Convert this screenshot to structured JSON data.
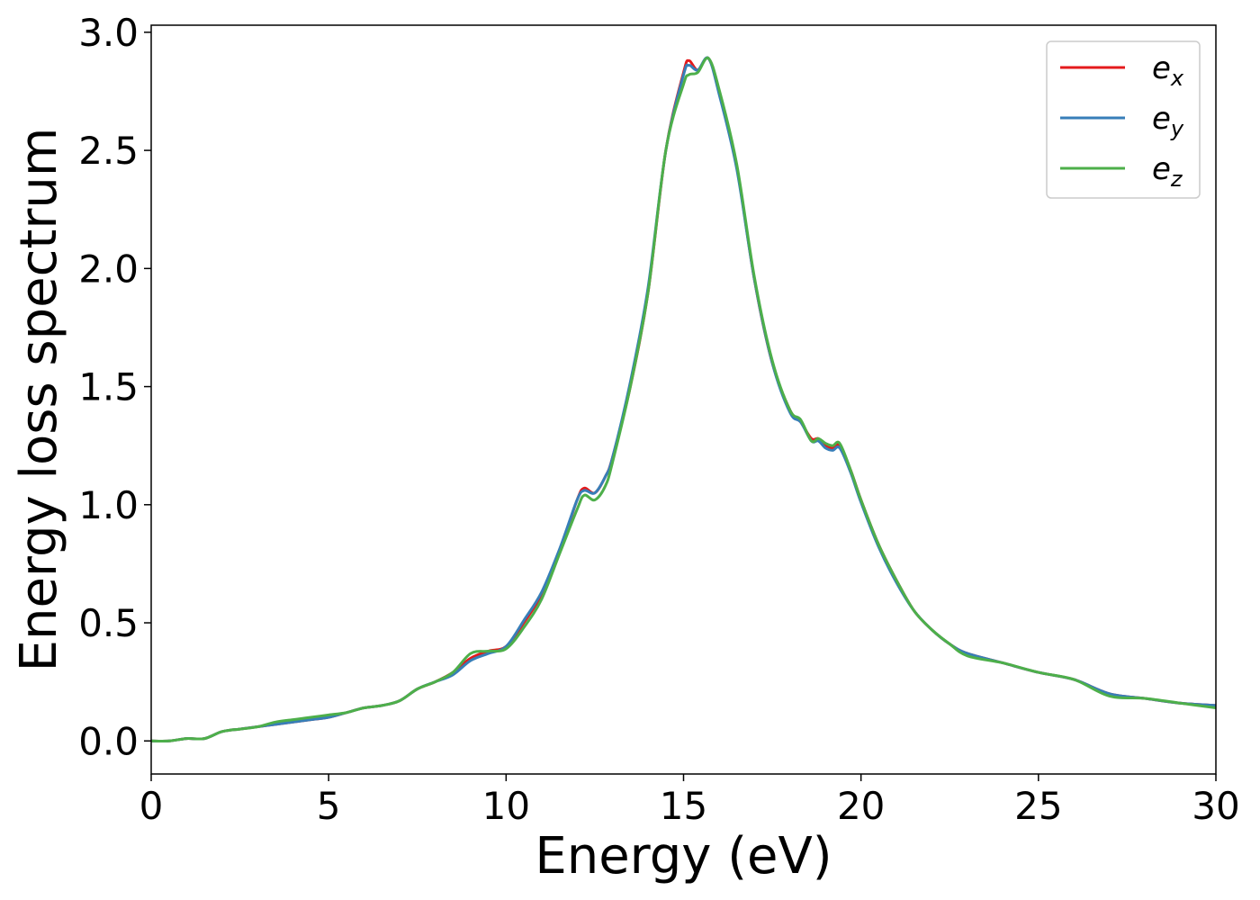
{
  "chart_data": {
    "type": "line",
    "xlabel": "Energy (eV)",
    "ylabel": "Energy loss spectrum",
    "xlim": [
      0,
      30
    ],
    "ylim": [
      -0.14,
      3.03
    ],
    "xticks": [
      0,
      5,
      10,
      15,
      20,
      25,
      30
    ],
    "xtick_labels": [
      "0",
      "5",
      "10",
      "15",
      "20",
      "25",
      "30"
    ],
    "yticks": [
      0.0,
      0.5,
      1.0,
      1.5,
      2.0,
      2.5,
      3.0
    ],
    "ytick_labels": [
      "0.0",
      "0.5",
      "1.0",
      "1.5",
      "2.0",
      "2.5",
      "3.0"
    ],
    "grid": false,
    "legend_position": "top-right",
    "series": [
      {
        "name": "e",
        "subscript": "x",
        "color": "#e41a1c",
        "x": [
          0,
          0.5,
          1.0,
          1.5,
          2.0,
          2.5,
          3.0,
          3.5,
          4.0,
          4.5,
          5.0,
          5.5,
          6.0,
          6.5,
          7.0,
          7.5,
          8.0,
          8.5,
          9.0,
          9.5,
          10.0,
          10.5,
          11.0,
          11.5,
          12.0,
          12.2,
          12.5,
          12.8,
          13.0,
          13.5,
          14.0,
          14.5,
          15.0,
          15.15,
          15.4,
          15.7,
          16.0,
          16.5,
          17.0,
          17.5,
          18.0,
          18.3,
          18.6,
          18.8,
          19.0,
          19.2,
          19.4,
          19.7,
          20.0,
          20.5,
          21.0,
          21.5,
          22.0,
          22.5,
          23.0,
          24.0,
          25.0,
          26.0,
          27.0,
          28.0,
          29.0,
          30.0
        ],
        "y": [
          0.0,
          0.0,
          0.01,
          0.01,
          0.04,
          0.05,
          0.06,
          0.07,
          0.08,
          0.09,
          0.1,
          0.12,
          0.14,
          0.15,
          0.17,
          0.22,
          0.25,
          0.29,
          0.35,
          0.38,
          0.4,
          0.5,
          0.62,
          0.8,
          1.02,
          1.07,
          1.05,
          1.12,
          1.2,
          1.5,
          1.9,
          2.5,
          2.83,
          2.88,
          2.84,
          2.89,
          2.75,
          2.43,
          1.95,
          1.6,
          1.4,
          1.35,
          1.28,
          1.28,
          1.25,
          1.24,
          1.25,
          1.15,
          1.02,
          0.83,
          0.68,
          0.55,
          0.47,
          0.41,
          0.37,
          0.33,
          0.29,
          0.26,
          0.2,
          0.18,
          0.16,
          0.15
        ]
      },
      {
        "name": "e",
        "subscript": "y",
        "color": "#377eb8",
        "x": [
          0,
          0.5,
          1.0,
          1.5,
          2.0,
          2.5,
          3.0,
          3.5,
          4.0,
          4.5,
          5.0,
          5.5,
          6.0,
          6.5,
          7.0,
          7.5,
          8.0,
          8.5,
          9.0,
          9.5,
          10.0,
          10.5,
          11.0,
          11.5,
          12.0,
          12.2,
          12.5,
          12.8,
          13.0,
          13.5,
          14.0,
          14.5,
          15.0,
          15.15,
          15.4,
          15.7,
          16.0,
          16.5,
          17.0,
          17.5,
          18.0,
          18.3,
          18.6,
          18.8,
          19.0,
          19.2,
          19.4,
          19.7,
          20.0,
          20.5,
          21.0,
          21.5,
          22.0,
          22.5,
          23.0,
          24.0,
          25.0,
          26.0,
          27.0,
          28.0,
          29.0,
          30.0
        ],
        "y": [
          0.0,
          0.0,
          0.01,
          0.01,
          0.04,
          0.05,
          0.06,
          0.07,
          0.08,
          0.09,
          0.1,
          0.12,
          0.14,
          0.15,
          0.17,
          0.22,
          0.25,
          0.28,
          0.34,
          0.37,
          0.4,
          0.51,
          0.63,
          0.81,
          1.02,
          1.06,
          1.05,
          1.12,
          1.2,
          1.52,
          1.92,
          2.5,
          2.82,
          2.86,
          2.84,
          2.89,
          2.74,
          2.42,
          1.95,
          1.6,
          1.39,
          1.35,
          1.27,
          1.27,
          1.24,
          1.23,
          1.24,
          1.14,
          1.01,
          0.82,
          0.67,
          0.55,
          0.47,
          0.41,
          0.37,
          0.33,
          0.29,
          0.26,
          0.2,
          0.18,
          0.16,
          0.15
        ]
      },
      {
        "name": "e",
        "subscript": "z",
        "color": "#4daf4a",
        "x": [
          0,
          0.5,
          1.0,
          1.5,
          2.0,
          2.5,
          3.0,
          3.5,
          4.0,
          4.5,
          5.0,
          5.5,
          6.0,
          6.5,
          7.0,
          7.5,
          8.0,
          8.5,
          9.0,
          9.5,
          10.0,
          10.5,
          11.0,
          11.5,
          12.0,
          12.2,
          12.5,
          12.8,
          13.0,
          13.5,
          14.0,
          14.5,
          15.0,
          15.15,
          15.4,
          15.7,
          16.0,
          16.5,
          17.0,
          17.5,
          18.0,
          18.3,
          18.6,
          18.8,
          19.0,
          19.2,
          19.4,
          19.7,
          20.0,
          20.5,
          21.0,
          21.5,
          22.0,
          22.5,
          23.0,
          24.0,
          25.0,
          26.0,
          27.0,
          28.0,
          29.0,
          30.0
        ],
        "y": [
          0.0,
          0.0,
          0.01,
          0.01,
          0.04,
          0.05,
          0.06,
          0.08,
          0.09,
          0.1,
          0.11,
          0.12,
          0.14,
          0.15,
          0.17,
          0.22,
          0.25,
          0.29,
          0.37,
          0.38,
          0.39,
          0.48,
          0.6,
          0.79,
          0.98,
          1.04,
          1.02,
          1.08,
          1.18,
          1.5,
          1.9,
          2.5,
          2.78,
          2.82,
          2.83,
          2.89,
          2.76,
          2.44,
          1.96,
          1.61,
          1.4,
          1.36,
          1.27,
          1.28,
          1.26,
          1.25,
          1.26,
          1.15,
          1.02,
          0.83,
          0.68,
          0.55,
          0.47,
          0.41,
          0.36,
          0.33,
          0.29,
          0.26,
          0.19,
          0.18,
          0.16,
          0.14
        ]
      }
    ]
  }
}
